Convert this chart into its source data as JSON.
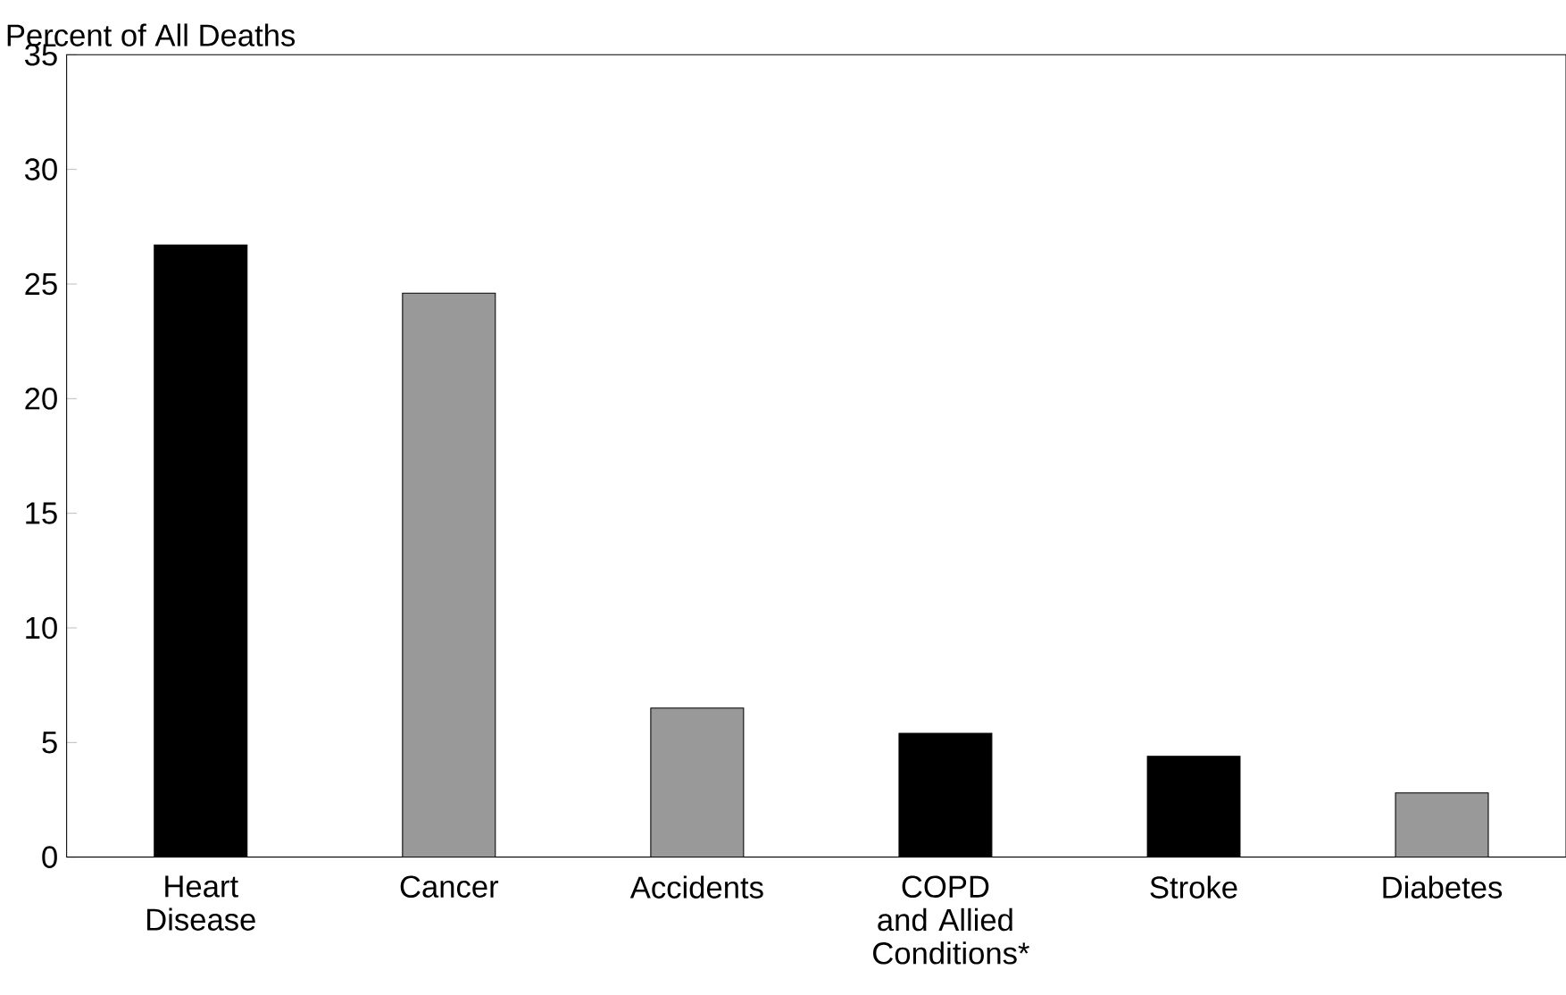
{
  "chart_data": {
    "type": "bar",
    "ylabel": "Percent of All Deaths",
    "categories": [
      "Heart Disease",
      "Cancer",
      "Accidents",
      "COPD and Allied Conditions*",
      "Stroke",
      "Diabetes"
    ],
    "values": [
      26.7,
      24.6,
      6.5,
      5.4,
      4.4,
      2.8
    ],
    "colors": [
      "#000000",
      "#999999",
      "#999999",
      "#000000",
      "#000000",
      "#999999"
    ],
    "ylim": [
      0,
      35
    ],
    "yticks": [
      0,
      5,
      10,
      15,
      20,
      25,
      30,
      35
    ]
  }
}
